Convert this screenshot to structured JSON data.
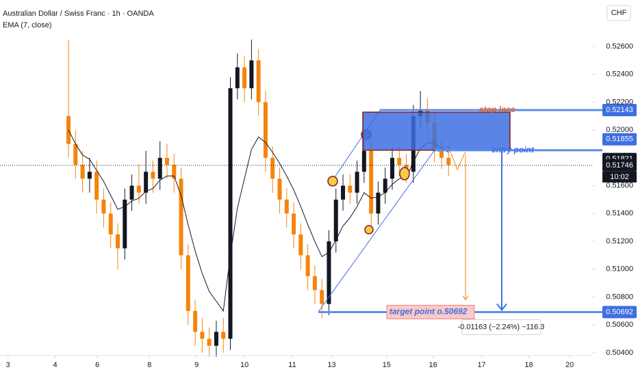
{
  "chart_data": {
    "type": "candlestick",
    "title": "Australian Dollar / Swiss Franc · 1h · OANDA",
    "indicator": "EMA (7, close)",
    "currency": "CHF",
    "up_color": "#131722",
    "down_color": "#f5840c",
    "ema_color": "#131722",
    "open": [
      0.521,
      0.519,
      0.5175,
      0.5165,
      0.517,
      0.515,
      0.514,
      0.5125,
      0.5115,
      0.515,
      0.516,
      0.5155,
      0.517,
      0.5165,
      0.518,
      0.5175,
      0.5165,
      0.511,
      0.507,
      0.5055,
      0.505,
      0.5045,
      0.5055,
      0.505,
      0.523,
      0.5245,
      0.523,
      0.525,
      0.522,
      0.518,
      0.5165,
      0.515,
      0.514,
      0.5125,
      0.511,
      0.5095,
      0.5085,
      0.5075,
      0.512,
      0.515,
      0.516,
      0.5155,
      0.517,
      0.5185,
      0.514,
      0.5155,
      0.5165,
      0.518,
      0.5175,
      0.517,
      0.521,
      0.5215,
      0.5205,
      0.5185,
      0.518
    ],
    "high": [
      0.5265,
      0.52,
      0.5185,
      0.518,
      0.5178,
      0.5158,
      0.5148,
      0.5133,
      0.5158,
      0.5168,
      0.5175,
      0.5185,
      0.5178,
      0.5192,
      0.519,
      0.5183,
      0.5173,
      0.5118,
      0.5078,
      0.5065,
      0.5058,
      0.5063,
      0.5065,
      0.5238,
      0.5255,
      0.5253,
      0.5265,
      0.5258,
      0.5228,
      0.5188,
      0.5173,
      0.5158,
      0.5148,
      0.5133,
      0.5118,
      0.5103,
      0.5093,
      0.5128,
      0.5158,
      0.5168,
      0.5168,
      0.5178,
      0.5193,
      0.5193,
      0.5163,
      0.5173,
      0.5188,
      0.5188,
      0.5183,
      0.5218,
      0.5228,
      0.5223,
      0.5213,
      0.5193,
      0.5188
    ],
    "low": [
      0.518,
      0.5165,
      0.5155,
      0.5155,
      0.514,
      0.513,
      0.5115,
      0.51,
      0.5107,
      0.5142,
      0.5147,
      0.5147,
      0.5155,
      0.5157,
      0.5165,
      0.5155,
      0.51,
      0.506,
      0.5045,
      0.504,
      0.5037,
      0.5037,
      0.504,
      0.5042,
      0.5222,
      0.522,
      0.5222,
      0.521,
      0.517,
      0.5155,
      0.514,
      0.513,
      0.5115,
      0.51,
      0.5085,
      0.5075,
      0.5065,
      0.5067,
      0.5112,
      0.5142,
      0.5147,
      0.5147,
      0.5162,
      0.513,
      0.5132,
      0.5147,
      0.5157,
      0.5167,
      0.5162,
      0.5162,
      0.5202,
      0.5197,
      0.5177,
      0.5172,
      0.5167
    ],
    "close": [
      0.519,
      0.5175,
      0.5165,
      0.517,
      0.515,
      0.514,
      0.5125,
      0.5115,
      0.515,
      0.516,
      0.5155,
      0.517,
      0.5165,
      0.518,
      0.5175,
      0.5165,
      0.511,
      0.507,
      0.5055,
      0.505,
      0.5045,
      0.5055,
      0.505,
      0.523,
      0.5245,
      0.523,
      0.525,
      0.522,
      0.518,
      0.5165,
      0.515,
      0.514,
      0.5125,
      0.511,
      0.5095,
      0.5085,
      0.5075,
      0.512,
      0.515,
      0.516,
      0.5155,
      0.517,
      0.5185,
      0.514,
      0.5155,
      0.5165,
      0.518,
      0.5175,
      0.517,
      0.521,
      0.5215,
      0.5205,
      0.5185,
      0.518,
      0.5175
    ],
    "ema": [
      0.52,
      0.519,
      0.5182,
      0.5179,
      0.5171,
      0.5163,
      0.5153,
      0.5143,
      0.5145,
      0.5149,
      0.5151,
      0.5156,
      0.5158,
      0.5164,
      0.5167,
      0.5167,
      0.5153,
      0.5132,
      0.5113,
      0.5097,
      0.5084,
      0.5077,
      0.507,
      0.511,
      0.5144,
      0.5165,
      0.5186,
      0.5195,
      0.5191,
      0.5184,
      0.5176,
      0.5167,
      0.5157,
      0.5145,
      0.5132,
      0.512,
      0.5109,
      0.5112,
      0.5121,
      0.5131,
      0.5137,
      0.5145,
      0.5155,
      0.5151,
      0.5152,
      0.5155,
      0.5161,
      0.5165,
      0.5166,
      0.5177,
      0.5187,
      0.5191,
      0.519,
      0.5187,
      0.5184
    ],
    "xlim": [
      -9.73,
      74.4
    ],
    "ylim": [
      0.50331,
      0.52934
    ],
    "xticks": [
      {
        "value": -8.6,
        "label": "3"
      },
      {
        "value": -1.9,
        "label": "4"
      },
      {
        "value": 4.1,
        "label": "6"
      },
      {
        "value": 11.5,
        "label": "8"
      },
      {
        "value": 18.2,
        "label": "9"
      },
      {
        "value": 25.0,
        "label": "10"
      },
      {
        "value": 31.8,
        "label": "11"
      },
      {
        "value": 37.4,
        "label": "13"
      },
      {
        "value": 45.2,
        "label": "15"
      },
      {
        "value": 51.8,
        "label": "16"
      },
      {
        "value": 58.7,
        "label": "17"
      },
      {
        "value": 65.4,
        "label": "18"
      },
      {
        "value": 71.2,
        "label": "20"
      }
    ],
    "yticks": [
      {
        "value": 0.526,
        "label": "0.52600"
      },
      {
        "value": 0.524,
        "label": "0.52400"
      },
      {
        "value": 0.522,
        "label": "0.52200"
      },
      {
        "value": 0.52,
        "label": "0.52000"
      },
      {
        "value": 0.516,
        "label": "0.51600"
      },
      {
        "value": 0.514,
        "label": "0.51400"
      },
      {
        "value": 0.512,
        "label": "0.51200"
      },
      {
        "value": 0.51,
        "label": "0.51000"
      },
      {
        "value": 0.508,
        "label": "0.50800"
      },
      {
        "value": 0.506,
        "label": "0.50600"
      },
      {
        "value": 0.504,
        "label": "0.50400"
      }
    ],
    "stop_loss": {
      "label": "stop loss",
      "value": 0.52143
    },
    "entry": {
      "label": "entry point",
      "value": 0.51855
    },
    "target": {
      "label": "target point o.50692",
      "value": 0.50692
    },
    "last_price": {
      "value": 0.51821
    },
    "current_price": {
      "value": 0.51746,
      "countdown": "10:02"
    },
    "measure": "-0.01163 (−2.24%) −116.3"
  }
}
